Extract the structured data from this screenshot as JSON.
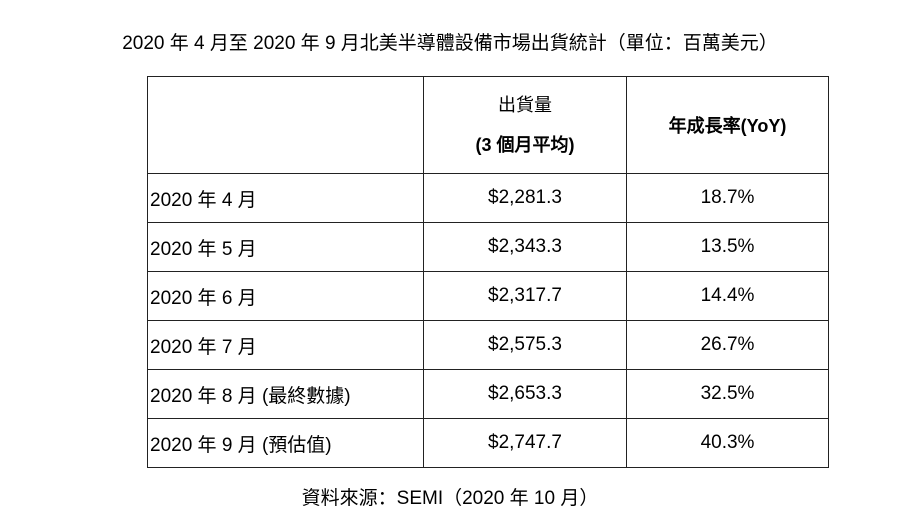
{
  "title": "2020 年 4 月至 2020 年 9 月北美半導體設備市場出貨統計（單位：百萬美元）",
  "table": {
    "headers": {
      "period": "",
      "shipments_line1": "出貨量",
      "shipments_line2": "(3 個月平均)",
      "yoy": "年成長率(YoY)"
    },
    "rows": [
      {
        "period": "2020 年 4 月",
        "shipments": "$2,281.3",
        "yoy": "18.7%"
      },
      {
        "period": "2020 年 5 月",
        "shipments": "$2,343.3",
        "yoy": "13.5%"
      },
      {
        "period": "2020 年 6 月",
        "shipments": "$2,317.7",
        "yoy": "14.4%"
      },
      {
        "period": "2020 年 7 月",
        "shipments": "$2,575.3",
        "yoy": "26.7%"
      },
      {
        "period": "2020 年 8 月 (最終數據)",
        "shipments": "$2,653.3",
        "yoy": "32.5%"
      },
      {
        "period": "2020 年 9 月 (預估值)",
        "shipments": "$2,747.7",
        "yoy": "40.3%"
      }
    ]
  },
  "footer": "資料來源：SEMI（2020 年 10 月）"
}
